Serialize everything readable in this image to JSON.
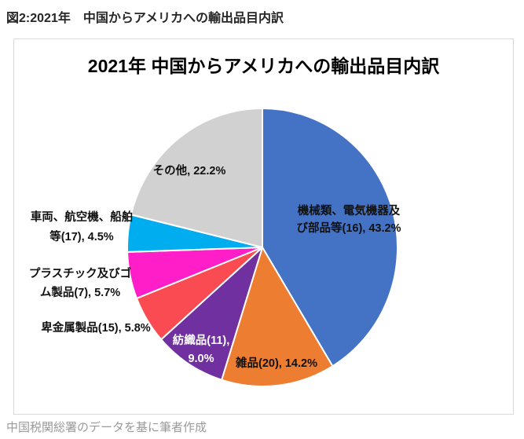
{
  "page": {
    "header": "図2:2021年　中国からアメリカへの輸出品目内訳",
    "caption": "中国税関総署のデータを基に筆者作成"
  },
  "chart_data": {
    "type": "pie",
    "title": "2021年 中国からアメリカへの輸出品目内訳",
    "start_angle_deg": 0,
    "direction": "clockwise",
    "legend": "none",
    "data_labels": "category-and-percent",
    "slices": [
      {
        "label": "機械類、電気機器及び部品等(16)",
        "value": 43.2,
        "color": "#4472C4",
        "label_lines": [
          "機械類、電気機器及",
          "び部品等(16), 43.2%"
        ],
        "label_color": "#111111",
        "placement": "inside"
      },
      {
        "label": "雑品(20)",
        "value": 14.2,
        "color": "#ED7D31",
        "label_lines": [
          "雑品(20), 14.2%"
        ],
        "label_color": "#111111",
        "placement": "inside"
      },
      {
        "label": "紡織品(11)",
        "value": 9.0,
        "color": "#7030A0",
        "label_lines": [
          "紡織品(11),",
          "9.0%"
        ],
        "label_color": "#ffffff",
        "placement": "inside"
      },
      {
        "label": "卑金属製品(15)",
        "value": 5.8,
        "color": "#FA4B52",
        "label_lines": [
          "卑金属製品(15), 5.8%"
        ],
        "label_color": "#111111",
        "placement": "outside"
      },
      {
        "label": "プラスチック及びゴム製品(7)",
        "value": 5.7,
        "color": "#FF1EC8",
        "label_lines": [
          "プラスチック及びゴ",
          "ム製品(7), 5.7%"
        ],
        "label_color": "#111111",
        "placement": "outside"
      },
      {
        "label": "車両、航空機、船舶等(17)",
        "value": 4.5,
        "color": "#00AEEF",
        "label_lines": [
          "車両、航空機、船舶",
          "等(17), 4.5%"
        ],
        "label_color": "#111111",
        "placement": "outside"
      },
      {
        "label": "その他",
        "value": 22.2,
        "color": "#D1D1D1",
        "label_lines": [
          "その他, 22.2%"
        ],
        "label_color": "#111111",
        "placement": "inside"
      }
    ]
  }
}
